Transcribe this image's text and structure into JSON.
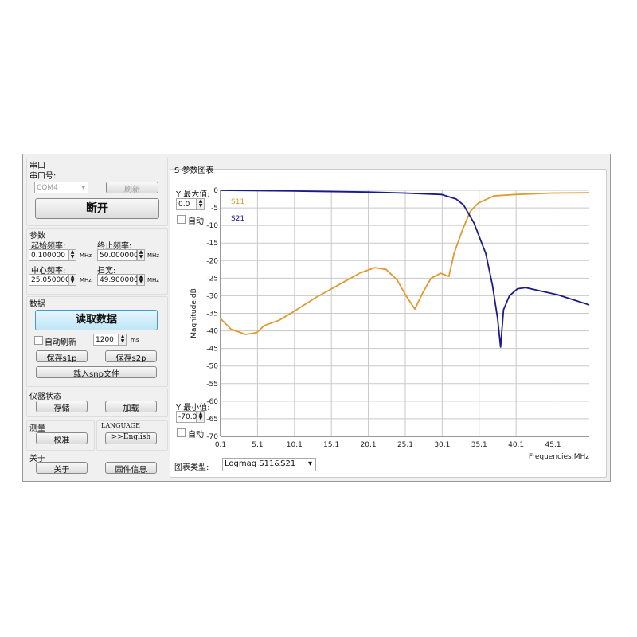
{
  "serial": {
    "title": "串口",
    "port_label": "串口号:",
    "port_value": "COM4",
    "refresh": "刷新",
    "disconnect": "断开"
  },
  "params": {
    "title": "参数",
    "start_label": "起始频率:",
    "start_value": "0.100000",
    "stop_label": "终止频率:",
    "stop_value": "50.000000",
    "center_label": "中心频率:",
    "center_value": "25.050000",
    "span_label": "扫宽:",
    "span_value": "49.900000",
    "unit": "MHz"
  },
  "data": {
    "title": "数据",
    "read": "读取数据",
    "auto_refresh": "自动刷新",
    "interval": "1200",
    "interval_unit": "ms",
    "save_s1p": "保存s1p",
    "save_s2p": "保存s2p",
    "load_snp": "载入snp文件"
  },
  "instrument": {
    "title": "仪器状态",
    "store": "存储",
    "load": "加载"
  },
  "measure": {
    "title": "测量",
    "calibrate": "校准"
  },
  "language": {
    "title": "LANGUAGE",
    "english": ">>English"
  },
  "about": {
    "title": "关于",
    "about": "关于",
    "firmware": "固件信息"
  },
  "chart_panel": {
    "title": "S 参数图表",
    "ymax_label": "Y 最大值:",
    "ymax_value": "0.0",
    "ymin_label": "Y 最小值:",
    "ymin_value": "-70.0",
    "auto": "自动",
    "type_label": "图表类型:",
    "type_value": "Logmag S11&S21"
  },
  "chart_data": {
    "type": "line",
    "xlabel": "Frequencies:MHz",
    "ylabel": "Magnitude:dB",
    "xlim": [
      0.1,
      50
    ],
    "ylim": [
      -70,
      0
    ],
    "grid": true,
    "legend": "top-left",
    "xticks": [
      "0.1",
      "5.1",
      "10.1",
      "15.1",
      "20.1",
      "25.1",
      "30.1",
      "35.1",
      "40.1",
      "45.1"
    ],
    "yticks": [
      "0",
      "-5",
      "-10",
      "-15",
      "-20",
      "-25",
      "-30",
      "-35",
      "-40",
      "-45",
      "-50",
      "-55",
      "-60",
      "-65",
      "-70"
    ],
    "series": [
      {
        "name": "S11",
        "color": "#e09a30",
        "x": [
          0.1,
          1.5,
          3.5,
          5,
          6,
          8,
          10,
          13,
          16,
          19,
          21,
          22.5,
          24,
          25.2,
          26.4,
          27.5,
          28.6,
          29.9,
          31,
          31.7,
          32.8,
          33.9,
          35,
          37.1,
          40,
          45,
          50
        ],
        "y": [
          -36.5,
          -39.5,
          -41,
          -40.5,
          -38.5,
          -37,
          -34.5,
          -30.5,
          -27,
          -23.5,
          -22,
          -22.5,
          -25.5,
          -30,
          -33.8,
          -29,
          -25,
          -23.6,
          -24.5,
          -18,
          -11.5,
          -6,
          -3.6,
          -1.6,
          -1.2,
          -0.8,
          -0.7
        ]
      },
      {
        "name": "S21",
        "color": "#1a1a8c",
        "x": [
          0.1,
          10,
          20,
          25,
          30,
          32,
          33,
          34.4,
          36,
          36.9,
          37.6,
          38,
          38.4,
          39.2,
          40.3,
          41.4,
          45.7,
          50
        ],
        "y": [
          0,
          -0.2,
          -0.5,
          -0.8,
          -1.2,
          -2.5,
          -4.2,
          -9.3,
          -18,
          -27,
          -36.5,
          -44.6,
          -34,
          -30,
          -28,
          -27.7,
          -29.7,
          -32.6
        ]
      }
    ]
  }
}
